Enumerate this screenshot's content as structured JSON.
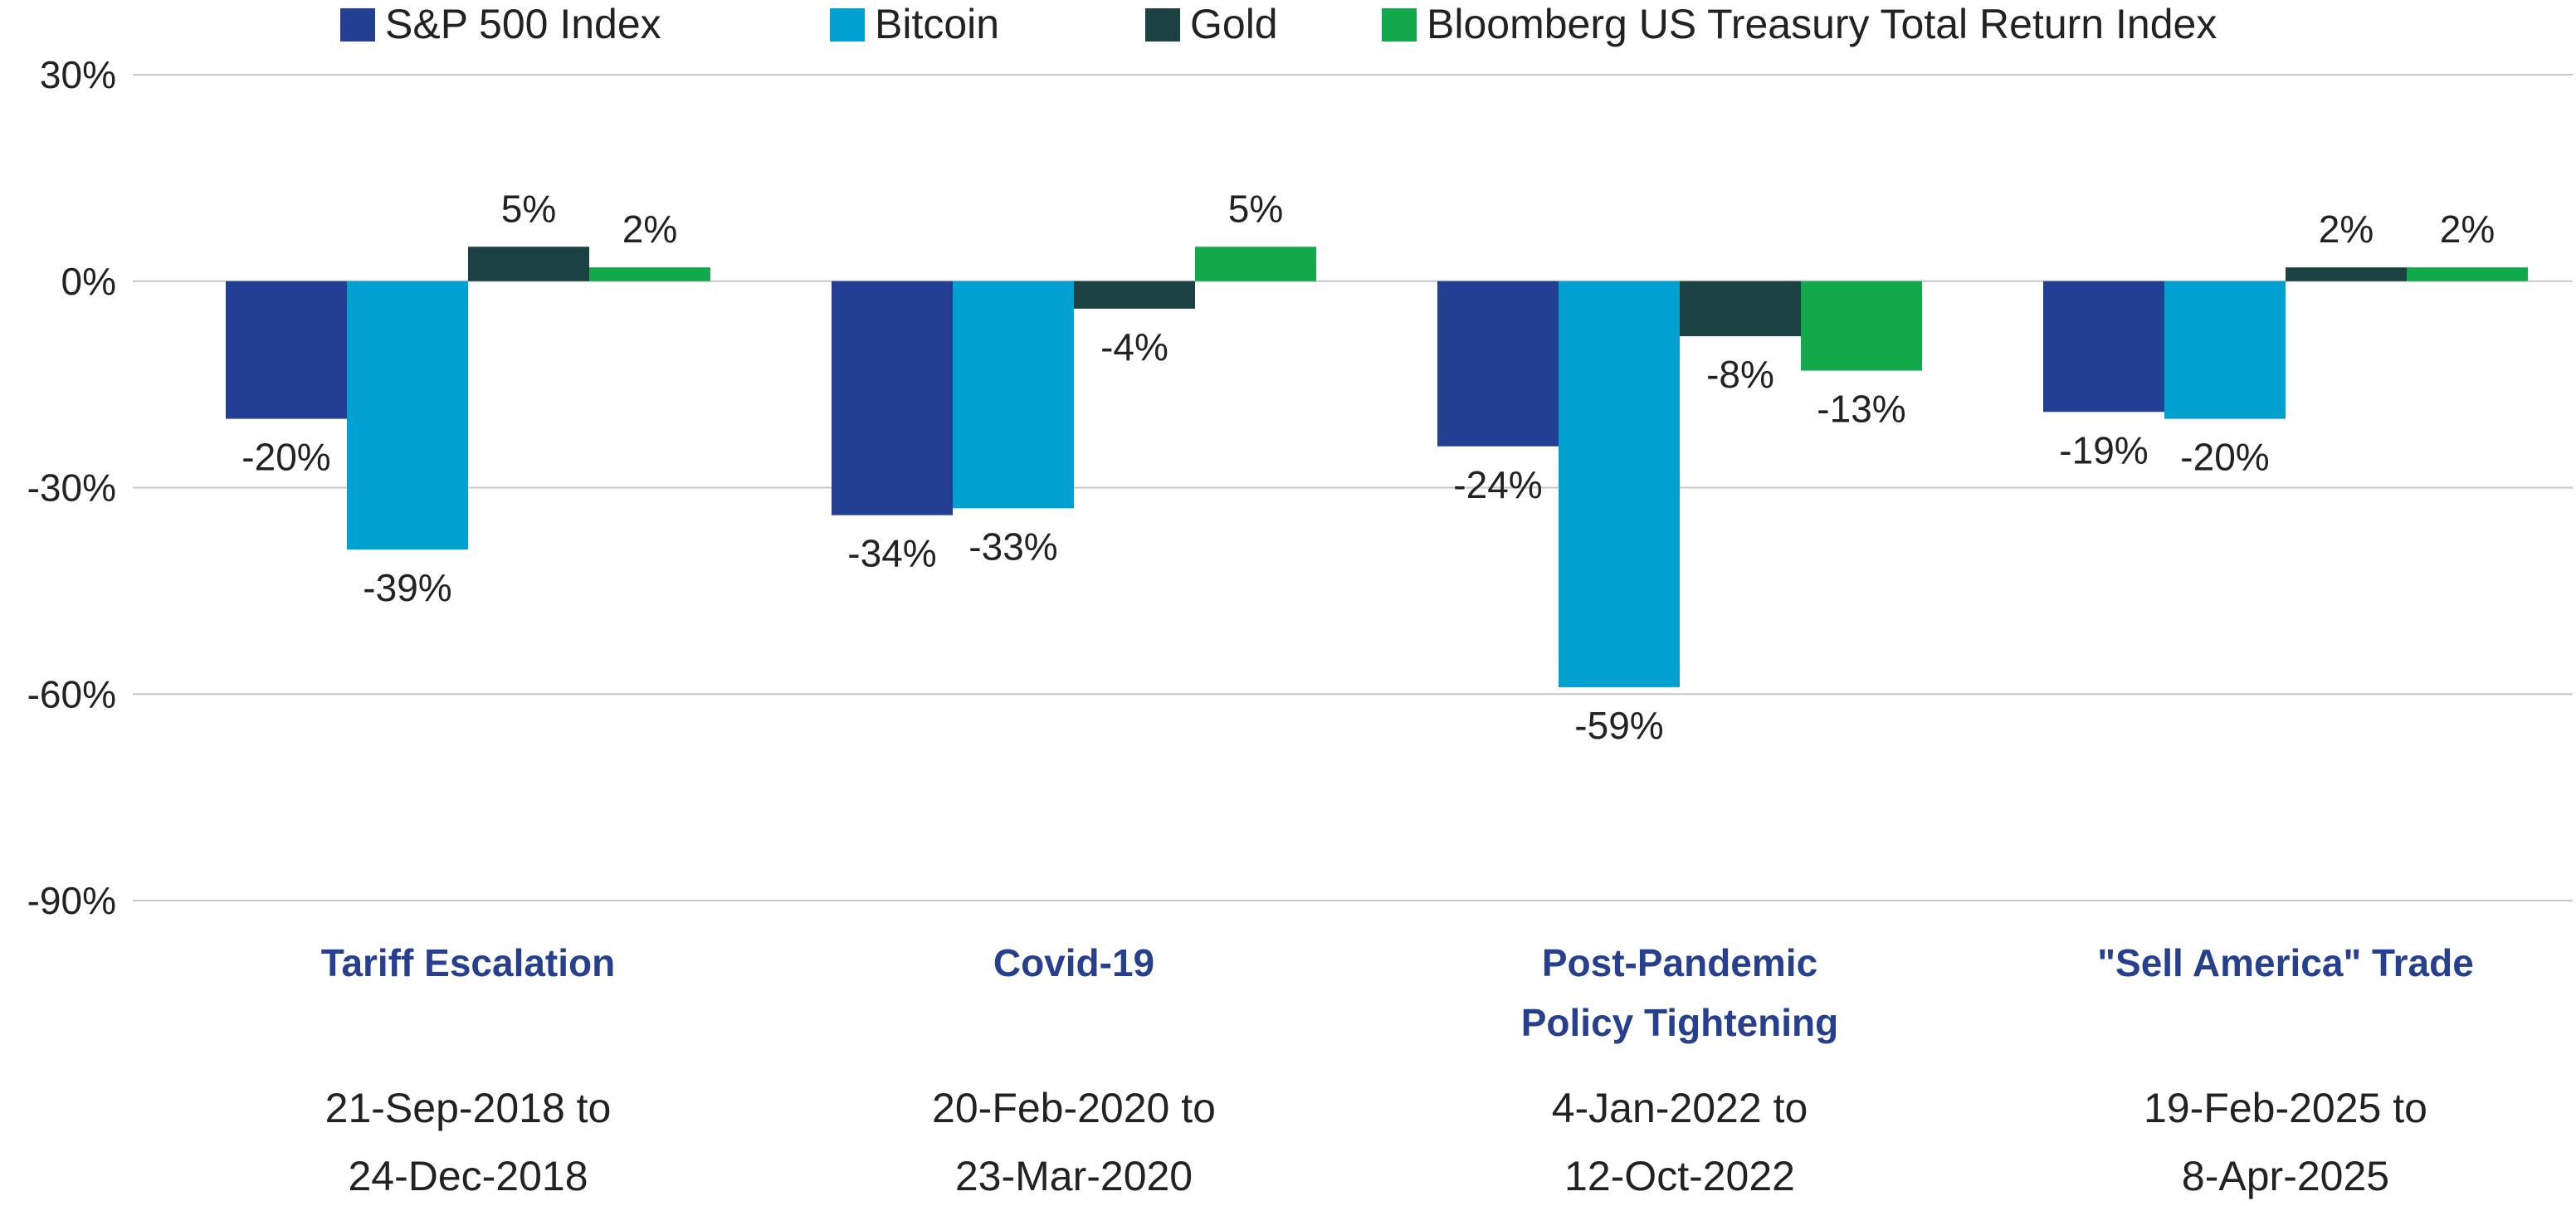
{
  "colors": {
    "category_title": "#26408F",
    "grid": "#C8C8C8",
    "text": "#222222"
  },
  "chart_data": {
    "type": "bar",
    "title": "",
    "xlabel": "",
    "ylabel": "",
    "ylim": [
      -90,
      30
    ],
    "y_ticks": [
      30,
      0,
      -30,
      -60,
      -90
    ],
    "y_tick_labels": [
      "30%",
      "0%",
      "-30%",
      "-60%",
      "-90%"
    ],
    "grid": true,
    "legend_position": "top",
    "categories": [
      {
        "title": [
          "Tariff Escalation"
        ],
        "dates": [
          "21-Sep-2018 to",
          "24-Dec-2018"
        ]
      },
      {
        "title": [
          "Covid-19"
        ],
        "dates": [
          "20-Feb-2020 to",
          "23-Mar-2020"
        ]
      },
      {
        "title": [
          "Post-Pandemic",
          "Policy Tightening"
        ],
        "dates": [
          "4-Jan-2022 to",
          "12-Oct-2022"
        ]
      },
      {
        "title": [
          "\"Sell America\" Trade"
        ],
        "dates": [
          "19-Feb-2025 to",
          "8-Apr-2025"
        ]
      }
    ],
    "series": [
      {
        "name": "S&P 500 Index",
        "color": "#233F93",
        "values": [
          -20,
          -34,
          -24,
          -19
        ],
        "labels": [
          "-20%",
          "-34%",
          "-24%",
          "-19%"
        ]
      },
      {
        "name": "Bitcoin",
        "color": "#00A0D1",
        "values": [
          -39,
          -33,
          -59,
          -20
        ],
        "labels": [
          "-39%",
          "-33%",
          "-59%",
          "-20%"
        ]
      },
      {
        "name": "Gold",
        "color": "#1C4143",
        "values": [
          5,
          -4,
          -8,
          2
        ],
        "labels": [
          "5%",
          "-4%",
          "-8%",
          "2%"
        ]
      },
      {
        "name": "Bloomberg US Treasury Total Return Index",
        "color": "#12A94B",
        "values": [
          2,
          5,
          -13,
          2
        ],
        "labels": [
          "2%",
          "5%",
          "-13%",
          "2%"
        ]
      }
    ]
  }
}
